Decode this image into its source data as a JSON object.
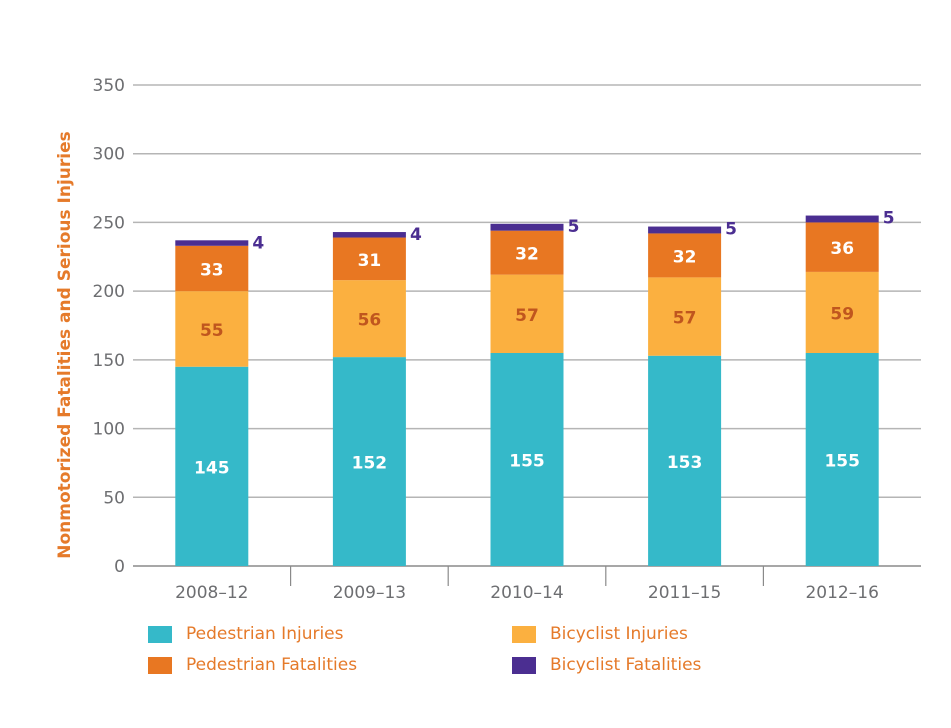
{
  "chart_data": {
    "type": "bar",
    "stacked": true,
    "title": "",
    "xlabel": "",
    "ylabel": "Nonmotorized Fatalities and Serious Injuries",
    "ylim": [
      0,
      350
    ],
    "yticks": [
      0,
      50,
      100,
      150,
      200,
      250,
      300,
      350
    ],
    "grid": true,
    "legend_position": "bottom",
    "categories": [
      "2008–12",
      "2009–13",
      "2010–14",
      "2011–15",
      "2012–16"
    ],
    "series": [
      {
        "name": "Pedestrian Injuries",
        "color": "#35b9c9",
        "label_color": "#ffffff",
        "values": [
          145,
          152,
          155,
          153,
          155
        ]
      },
      {
        "name": "Bicyclist Injuries",
        "color": "#fbb040",
        "label_color": "#c0561e",
        "values": [
          55,
          56,
          57,
          57,
          59
        ]
      },
      {
        "name": "Pedestrian Fatalities",
        "color": "#e87722",
        "label_color": "#ffffff",
        "values": [
          33,
          31,
          32,
          32,
          36
        ]
      },
      {
        "name": "Bicyclist Fatalities",
        "color": "#4b2e91",
        "label_color": "#4b2e91",
        "values": [
          4,
          4,
          5,
          5,
          5
        ]
      }
    ]
  }
}
